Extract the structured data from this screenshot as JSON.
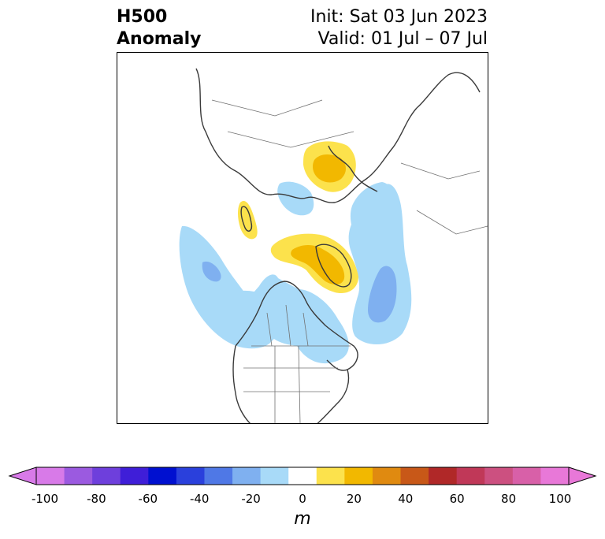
{
  "header": {
    "title_line1": "H500",
    "title_line2": "Anomaly",
    "init": "Init: Sat 03 Jun 2023",
    "valid": "Valid: 01 Jul – 07 Jul"
  },
  "colorbar": {
    "ticks": [
      "-100",
      "-80",
      "-60",
      "-40",
      "-20",
      "0",
      "20",
      "40",
      "60",
      "80",
      "100"
    ],
    "unit": "m",
    "colors": [
      "#d87ae8",
      "#9b5ae0",
      "#6e3fdc",
      "#3f1ed8",
      "#0010d0",
      "#2a40dc",
      "#4f78e6",
      "#7fb0f0",
      "#a8daf8",
      "#ffffff",
      "#fce24c",
      "#f2b800",
      "#e08a10",
      "#c85818",
      "#b02828",
      "#c03858",
      "#cc5080",
      "#d860a8",
      "#e878d8"
    ],
    "range_min": -100,
    "range_max": 100,
    "extend": "both"
  },
  "map": {
    "projection": "north-polar-stereographic",
    "anomaly_colors": {
      "light_blue": "#a8daf8",
      "mid_blue": "#7fb0f0",
      "light_yellow": "#fce24c",
      "gold": "#f2b800"
    }
  }
}
